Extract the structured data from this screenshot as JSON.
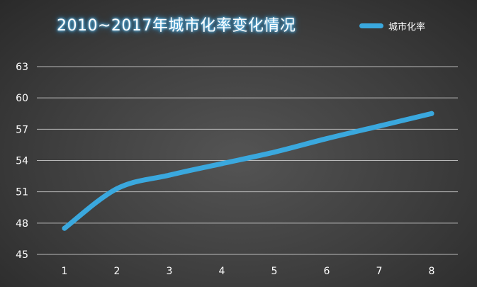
{
  "chart_data": {
    "type": "line",
    "title": "2010~2017年城市化率变化情况",
    "xlabel": "",
    "ylabel": "",
    "categories": [
      "1",
      "2",
      "3",
      "4",
      "5",
      "6",
      "7",
      "8"
    ],
    "series": [
      {
        "name": "城市化率",
        "values": [
          47.5,
          51.3,
          52.6,
          53.7,
          54.8,
          56.1,
          57.3,
          58.5
        ],
        "color": "#3aa8de"
      }
    ],
    "ylim": [
      45,
      63
    ],
    "yticks": [
      45,
      48,
      51,
      54,
      57,
      60,
      63
    ],
    "grid": true,
    "legend_position": "top-right",
    "background": "#3e3e3e",
    "gridline_color": "#cfcfcf"
  }
}
